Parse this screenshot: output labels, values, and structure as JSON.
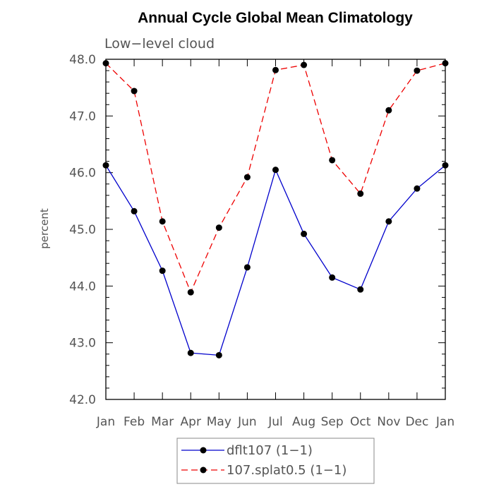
{
  "chart_data": {
    "type": "line",
    "title": "Annual Cycle Global Mean Climatology",
    "subtitle": "Low−level cloud",
    "ylabel": "percent",
    "xlabel": "",
    "categories": [
      "Jan",
      "Feb",
      "Mar",
      "Apr",
      "May",
      "Jun",
      "Jul",
      "Aug",
      "Sep",
      "Oct",
      "Nov",
      "Dec",
      "Jan"
    ],
    "ylim": [
      42.0,
      48.0
    ],
    "yticks": [
      "42.0",
      "43.0",
      "44.0",
      "45.0",
      "46.0",
      "47.0",
      "48.0"
    ],
    "grid": false,
    "legend_position": "bottom",
    "series": [
      {
        "name": "dflt107 (1−1)",
        "color": "#0000cc",
        "dash": "solid",
        "values": [
          46.13,
          45.32,
          44.27,
          42.82,
          42.78,
          44.33,
          46.05,
          44.92,
          44.15,
          43.94,
          45.14,
          45.72,
          46.13
        ]
      },
      {
        "name": "107.splat0.5 (1−1)",
        "color": "#ee0000",
        "dash": "dashed",
        "values": [
          47.93,
          47.44,
          45.14,
          43.89,
          45.03,
          45.92,
          47.81,
          47.9,
          46.22,
          45.63,
          47.1,
          47.8,
          47.93
        ]
      }
    ]
  }
}
